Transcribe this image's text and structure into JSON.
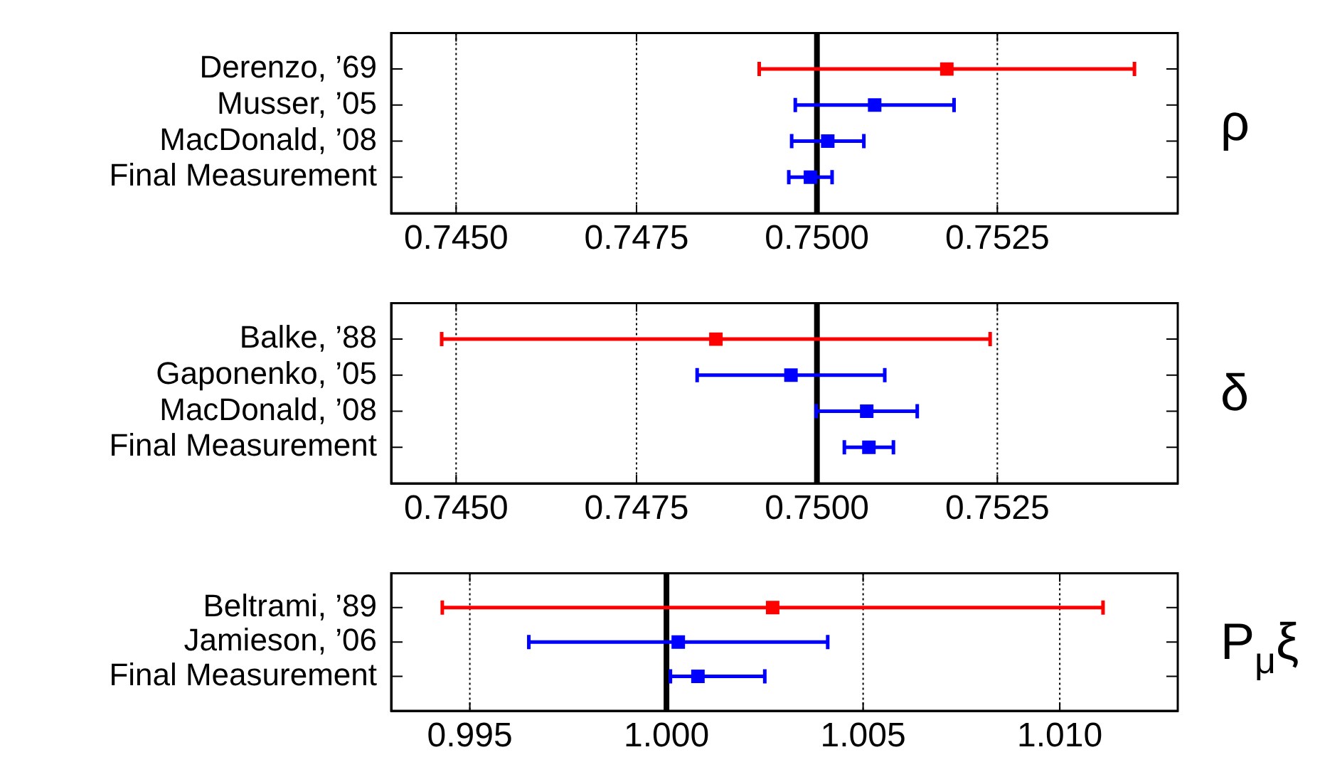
{
  "chart_data": [
    {
      "type": "scatter",
      "y2label": "ρ",
      "orientation": "horizontal",
      "categories": [
        "Derenzo, ’69",
        "Musser, ’05",
        "MacDonald, ’08",
        "Final Measurement"
      ],
      "series": [
        {
          "color": "#ff0000",
          "values": [
            0.7518,
            null,
            null,
            null
          ],
          "errors": [
            0.0026,
            null,
            null,
            null
          ]
        },
        {
          "color": "#0000ff",
          "values": [
            null,
            0.7508,
            0.75015,
            0.74991
          ],
          "errors": [
            null,
            0.0011,
            0.0005,
            0.0003
          ]
        }
      ],
      "xlim": [
        0.7441,
        0.755
      ],
      "xticks": [
        {
          "value": 0.745,
          "label": "0.7450"
        },
        {
          "value": 0.7475,
          "label": "0.7475"
        },
        {
          "value": 0.75,
          "label": "0.7500"
        },
        {
          "value": 0.7525,
          "label": "0.7525"
        }
      ],
      "grid": "x",
      "marker": "square",
      "ref_lines": [
        {
          "axis": "x",
          "value": 0.75,
          "color": "#000000"
        }
      ]
    },
    {
      "type": "scatter",
      "y2label": "δ",
      "orientation": "horizontal",
      "categories": [
        "Balke, ’88",
        "Gaponenko, ’05",
        "MacDonald, ’08",
        "Final Measurement"
      ],
      "series": [
        {
          "color": "#ff0000",
          "values": [
            0.7486,
            null,
            null,
            null
          ],
          "errors": [
            0.0038,
            null,
            null,
            null
          ]
        },
        {
          "color": "#0000ff",
          "values": [
            null,
            0.74964,
            0.75069,
            0.75072
          ],
          "errors": [
            null,
            0.0013,
            0.0007,
            0.00034
          ]
        }
      ],
      "xlim": [
        0.7441,
        0.755
      ],
      "xticks": [
        {
          "value": 0.745,
          "label": "0.7450"
        },
        {
          "value": 0.7475,
          "label": "0.7475"
        },
        {
          "value": 0.75,
          "label": "0.7500"
        },
        {
          "value": 0.7525,
          "label": "0.7525"
        }
      ],
      "grid": "x",
      "marker": "square",
      "ref_lines": [
        {
          "axis": "x",
          "value": 0.75,
          "color": "#000000"
        }
      ]
    },
    {
      "type": "scatter",
      "y2label": "P$_{μ}$ξ",
      "orientation": "horizontal",
      "categories": [
        "Beltrami, ’89",
        "Jamieson, ’06",
        "Final Measurement"
      ],
      "series": [
        {
          "color": "#ff0000",
          "values": [
            1.0027,
            null,
            null
          ],
          "errors": [
            0.0084,
            null,
            null
          ]
        },
        {
          "color": "#0000ff",
          "values": [
            null,
            1.0003,
            1.0008
          ],
          "errors": [
            null,
            0.0038,
            [
              1.0001,
              1.0025
            ]
          ]
        }
      ],
      "xlim": [
        0.993,
        1.013
      ],
      "xticks": [
        0.995,
        {
          "value": 1.0,
          "label": "1.000"
        },
        {
          "value": 1.005,
          "label": "1.005"
        },
        {
          "value": 1.01,
          "label": "1.010"
        }
      ],
      "grid": "x",
      "marker": "square",
      "ref_lines": [
        {
          "axis": "x",
          "value": 1.0,
          "color": "#000000"
        }
      ]
    }
  ]
}
